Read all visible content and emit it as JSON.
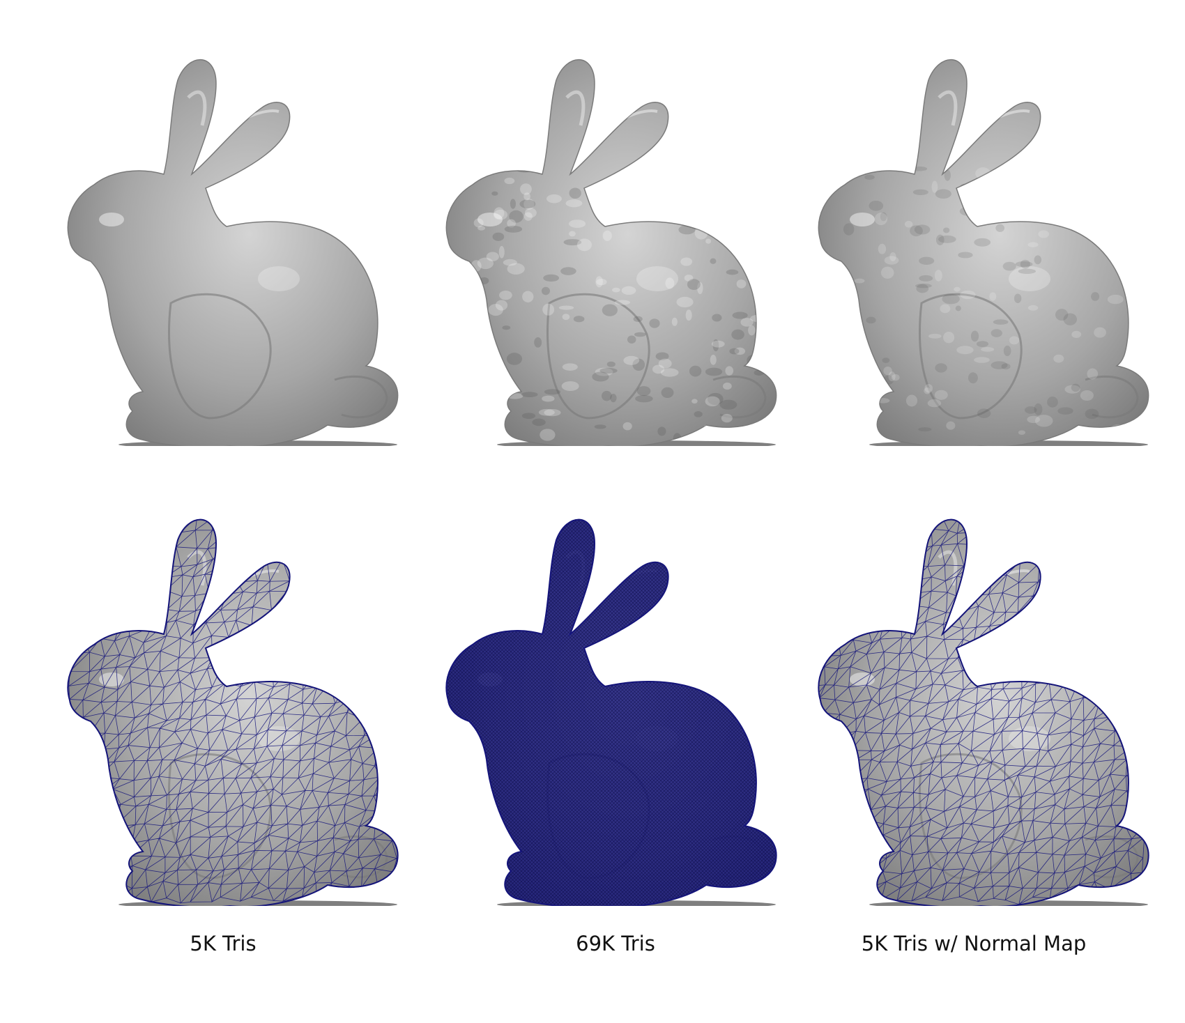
{
  "colors": {
    "background": "#ffffff",
    "surface": "#a6a6a6",
    "surface_dark": "#7a7a7a",
    "surface_light": "#d4d4d4",
    "wire": "#14147a",
    "caption_text": "#111111"
  },
  "columns": [
    {
      "caption": "5K Tris",
      "shaded_render": {
        "detail": "smooth"
      },
      "wire_render": {
        "wire": "sparse"
      }
    },
    {
      "caption": "69K Tris",
      "shaded_render": {
        "detail": "high"
      },
      "wire_render": {
        "wire": "dense"
      }
    },
    {
      "caption": "5K Tris w/ Normal Map",
      "shaded_render": {
        "detail": "normal-mapped"
      },
      "wire_render": {
        "wire": "sparse"
      }
    }
  ]
}
